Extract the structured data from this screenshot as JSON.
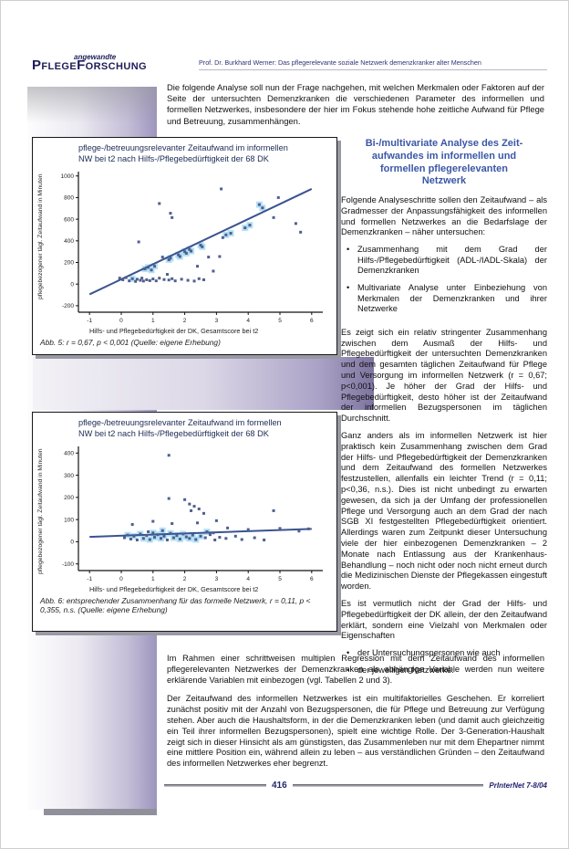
{
  "header": {
    "brand_small": "angewandte",
    "brand_big": "PflegeForschung",
    "running_head": "Prof. Dr. Burkhard Werner: Das pflegerelevante soziale Netzwerk demenzkranker alter Menschen"
  },
  "intro": "Die folgende Analyse soll nun der Frage nachgehen, mit welchen Merkmalen oder Faktoren auf der Seite der untersuchten Demenzkranken die verschiedenen Parameter des informellen und formellen Netzwerkes, insbesondere der hier im Fokus stehende hohe zeitliche Aufwand für Pflege und Betreuung, zusammenhängen.",
  "right_column": {
    "heading": "Bi-/multivariate Analyse des Zeit-\naufwandes im informellen und\nformellen pflegerelevanten\nNetzwerk",
    "para1": "Folgende Analyseschritte sollen den Zeitaufwand – als Gradmesser der Anpassungsfähigkeit des informellen und formellen Netzwerkes an die Bedarfslage der Demenzkranken – näher untersuchen:",
    "bullets1": [
      "Zusammenhang mit dem Grad der Hilfs-/Pflegebedürftigkeit (ADL-/IADL-Skala) der Demenzkranken",
      "Multivariate Analyse unter Einbeziehung von Merkmalen der Demenzkranken und ihrer Netzwerke"
    ],
    "para2": "Es zeigt sich ein relativ stringenter Zusammenhang zwischen dem Ausmaß der Hilfs- und Pflegebedürftigkeit der untersuchten Demenzkranken und dem gesamten täglichen Zeitaufwand für Pflege und Versorgung im informellen Netzwerk (r = 0,67; p<0,001). Je höher der Grad der Hilfs- und Pflegebedürftigkeit, desto höher ist der Zeitaufwand der informellen Bezugspersonen im täglichen Durchschnitt.",
    "para3": "Ganz anders als im informellen Netzwerk ist hier praktisch kein Zusammenhang zwischen dem Grad der Hilfs- und Pflegebedürftigkeit der Demenzkranken und dem Zeitaufwand des formellen Netzwerkes festzustellen, allenfalls ein leichter Trend (r = 0,11; p<0,36, n.s.). Dies ist nicht unbedingt zu erwarten gewesen, da sich ja der Umfang der professionellen Pflege und Versorgung auch an dem Grad der nach SGB XI festgestellten Pflegebedürftigkeit orientiert. Allerdings waren zum Zeitpunkt dieser Untersuchung viele der hier einbezogenen Demenzkranken – 2 Monate nach Entlassung aus der Krankenhaus-Behandlung – noch nicht oder noch nicht erneut durch die Medizinischen Dienste der Pflegekassen eingestuft worden.",
    "para4": "Es ist vermutlich nicht der Grad der Hilfs- und Pflegebedürftigkeit der DK allein, der den Zeitaufwand erklärt, sondern eine Vielzahl von Merkmalen oder Eigenschaften",
    "bullets2": [
      "der Untersuchungspersonen wie auch",
      "der jeweiligen Netzwerke."
    ]
  },
  "bottom": {
    "para1": "Im Rahmen einer schrittweisen multiplen Regression mit dem Zeitaufwand des informellen pflegerelevanten Netzwerkes der Demenzkranken als abhängige Variable werden nun weitere erklärende Variablen mit einbezogen (vgl. Tabellen 2 und 3).",
    "para2": "Der Zeitaufwand des informellen Netzwerkes ist ein multifaktorielles Geschehen. Er korreliert zunächst positiv mit der Anzahl von Bezugspersonen, die für Pflege und Betreuung zur Verfügung stehen. Aber auch die Haushaltsform, in der die Demenzkranken leben (und damit auch gleichzeitig ein Teil ihrer informellen Bezugspersonen), spielt eine wichtige Rolle. Der 3-Generation-Haushalt zeigt sich in dieser Hinsicht als am günstigsten, das Zusammenleben nur mit dem Ehepartner nimmt eine mittlere Position ein, während allein zu leben – aus verständlichen Gründen – den Zeitaufwand des informellen Netzwerkes eher begrenzt."
  },
  "footer": {
    "page_number": "416",
    "issue": "PrInterNet 7-8/04"
  },
  "colors": {
    "accent_navy": "#1d1d5a",
    "heading_blue": "#3a57a6",
    "band_purple": "#a59cc3",
    "point": "#4f5f8f",
    "halo": "#a9dcf4",
    "trend": "#3a5390",
    "axis": "#111111"
  },
  "chart_data": [
    {
      "type": "scatter",
      "title": "pflege-/betreuungsrelevanter Zeitaufwand im informellen\nNW bei t2 nach Hilfs-/Pflegebedürftigkeit der 68 DK",
      "xlabel": "Hilfs- und Pflegebedürftigkeit der DK, Gesamtscore bei t2",
      "ylabel": "pflegebezogener tägl. Zeitaufwand in Minuten",
      "caption": "Abb. 5: r = 0,67, p < 0,001 (Quelle: eigene Erhebung)",
      "xlim": [
        -1.35,
        6.35
      ],
      "ylim": [
        -260,
        1040
      ],
      "xticks": [
        -1,
        0,
        1,
        2,
        3,
        4,
        5,
        6
      ],
      "yticks": [
        1000,
        800,
        600,
        400,
        200,
        0,
        -200
      ],
      "trend": {
        "x1": -1,
        "y1": -95,
        "x2": 6,
        "y2": 880
      },
      "points": [
        [
          -0.05,
          55
        ],
        [
          0.05,
          40
        ],
        [
          0.15,
          60
        ],
        [
          0.25,
          30
        ],
        [
          0.35,
          50,
          1
        ],
        [
          0.45,
          25
        ],
        [
          0.5,
          45
        ],
        [
          0.6,
          35
        ],
        [
          0.65,
          55
        ],
        [
          0.7,
          28
        ],
        [
          0.8,
          40
        ],
        [
          0.9,
          32
        ],
        [
          1.0,
          48
        ],
        [
          1.1,
          30
        ],
        [
          1.2,
          55
        ],
        [
          1.35,
          42
        ],
        [
          1.5,
          38
        ],
        [
          1.6,
          50
        ],
        [
          1.7,
          30
        ],
        [
          1.9,
          45
        ],
        [
          2.1,
          35
        ],
        [
          2.3,
          28
        ],
        [
          2.45,
          50
        ],
        [
          2.6,
          40
        ],
        [
          0.75,
          140,
          1
        ],
        [
          0.85,
          155,
          1
        ],
        [
          0.95,
          130,
          1
        ],
        [
          1.05,
          165,
          1
        ],
        [
          1.5,
          225,
          1
        ],
        [
          1.55,
          240,
          1
        ],
        [
          1.8,
          270,
          1
        ],
        [
          1.85,
          255,
          1
        ],
        [
          2.0,
          300,
          1
        ],
        [
          2.05,
          285,
          1
        ],
        [
          2.15,
          320,
          1
        ],
        [
          2.2,
          305,
          1
        ],
        [
          2.5,
          360,
          1
        ],
        [
          2.55,
          345,
          1
        ],
        [
          3.3,
          455,
          1
        ],
        [
          3.45,
          470,
          1
        ],
        [
          3.9,
          520,
          1
        ],
        [
          4.05,
          545,
          1
        ],
        [
          0.55,
          390
        ],
        [
          1.3,
          250
        ],
        [
          1.45,
          90
        ],
        [
          2.4,
          165
        ],
        [
          2.75,
          250
        ],
        [
          2.9,
          120
        ],
        [
          3.1,
          255
        ],
        [
          3.2,
          430
        ],
        [
          1.2,
          745
        ],
        [
          1.55,
          655
        ],
        [
          1.6,
          615
        ],
        [
          3.15,
          880
        ],
        [
          4.35,
          735,
          1
        ],
        [
          4.45,
          705,
          1
        ],
        [
          4.95,
          800
        ],
        [
          4.8,
          615
        ],
        [
          5.5,
          560
        ],
        [
          5.65,
          480
        ]
      ]
    },
    {
      "type": "scatter",
      "title": "pflege-/betreuungsrelevanter Zeitaufwand im formellen\nNW bei t2 nach Hilfs-/Pflegebedürftigkeit der 68 DK",
      "xlabel": "Hilfs- und Pflegebedürftigkeit der DK, Gesamtscore bei t2",
      "ylabel": "pflegebezogener tägl. Zeitaufwand in Minuten",
      "caption": "Abb. 6: entsprechender Zusammenhang für das formelle Netzwerk, r = 0,11, p < 0,355, n.s. (Quelle: eigene Erhebung)",
      "xlim": [
        -1.35,
        6.35
      ],
      "ylim": [
        -130,
        430
      ],
      "xticks": [
        -1,
        0,
        1,
        2,
        3,
        4,
        5,
        6
      ],
      "yticks": [
        400,
        300,
        200,
        100,
        0,
        -100
      ],
      "trend": {
        "x1": -1,
        "y1": 22,
        "x2": 6,
        "y2": 58
      },
      "points": [
        [
          1.5,
          390
        ],
        [
          1.5,
          195
        ],
        [
          2.0,
          190
        ],
        [
          2.15,
          170
        ],
        [
          2.3,
          160
        ],
        [
          2.2,
          140
        ],
        [
          2.45,
          148
        ],
        [
          2.6,
          128
        ],
        [
          4.8,
          140
        ],
        [
          3.0,
          95
        ],
        [
          1.0,
          92
        ],
        [
          0.35,
          78
        ],
        [
          1.6,
          82
        ],
        [
          2.4,
          85
        ],
        [
          3.35,
          62
        ],
        [
          4.0,
          55
        ],
        [
          5.0,
          60
        ],
        [
          5.6,
          48
        ],
        [
          5.9,
          58
        ],
        [
          0.1,
          18
        ],
        [
          0.2,
          30,
          1
        ],
        [
          0.3,
          12
        ],
        [
          0.4,
          25,
          1
        ],
        [
          0.5,
          8
        ],
        [
          0.6,
          35,
          1
        ],
        [
          0.7,
          15,
          1
        ],
        [
          0.8,
          28
        ],
        [
          0.9,
          10,
          1
        ],
        [
          1.0,
          40,
          1
        ],
        [
          1.05,
          20,
          1
        ],
        [
          1.15,
          32,
          1
        ],
        [
          1.25,
          15,
          1
        ],
        [
          1.35,
          25,
          1
        ],
        [
          1.45,
          8
        ],
        [
          1.55,
          38,
          1
        ],
        [
          1.65,
          18,
          1
        ],
        [
          1.75,
          28,
          1
        ],
        [
          1.85,
          12,
          1
        ],
        [
          1.95,
          35,
          1
        ],
        [
          2.05,
          22,
          1
        ],
        [
          2.15,
          15,
          1
        ],
        [
          2.25,
          30,
          1
        ],
        [
          2.35,
          10,
          1
        ],
        [
          2.5,
          25,
          1
        ],
        [
          2.65,
          18
        ],
        [
          2.8,
          32
        ],
        [
          2.95,
          8
        ],
        [
          3.1,
          20
        ],
        [
          3.3,
          15
        ],
        [
          3.6,
          25
        ],
        [
          3.8,
          10
        ],
        [
          4.2,
          18
        ],
        [
          4.5,
          8
        ],
        [
          2.7,
          45,
          1
        ],
        [
          1.3,
          50,
          1
        ],
        [
          0.85,
          45
        ],
        [
          2.9,
          40
        ]
      ]
    }
  ]
}
